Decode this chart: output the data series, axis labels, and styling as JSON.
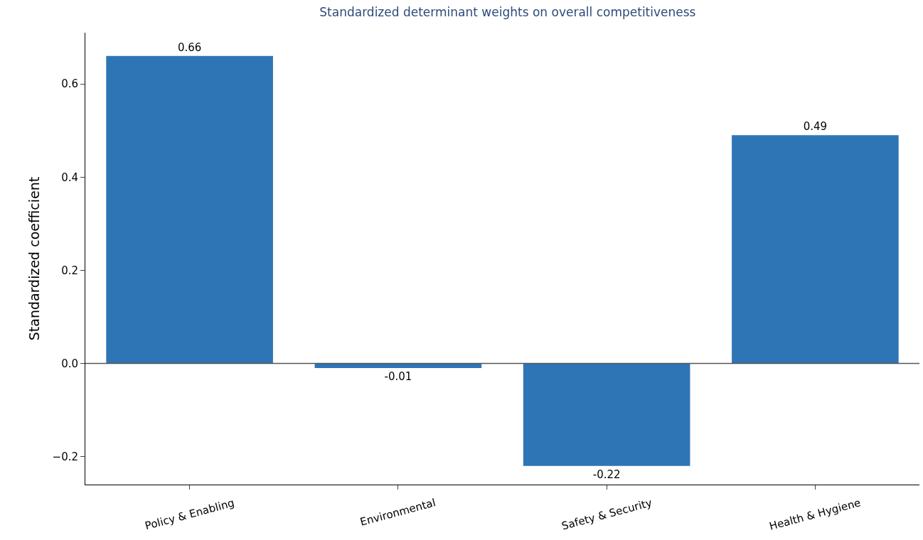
{
  "chart_data": {
    "type": "bar",
    "title": "Standardized determinant weights on overall competitiveness",
    "ylabel": "Standardized coefficient",
    "categories": [
      "Policy & Enabling",
      "Environmental",
      "Safety & Security",
      "Health & Hygiene"
    ],
    "values": [
      0.66,
      -0.01,
      -0.22,
      0.49
    ],
    "color": "#2e75b6",
    "ylim": [
      -0.26,
      0.71
    ],
    "yticks": [
      {
        "value": -0.2,
        "label": "−0.2"
      },
      {
        "value": 0,
        "label": "0.0"
      },
      {
        "value": 0.2,
        "label": "0.2"
      },
      {
        "value": 0.4,
        "label": "0.4"
      },
      {
        "value": 0.6,
        "label": "0.6"
      }
    ],
    "ref_lines": [
      {
        "axis": "y",
        "value": 0,
        "color": "#555555"
      }
    ],
    "data_labels": true
  }
}
